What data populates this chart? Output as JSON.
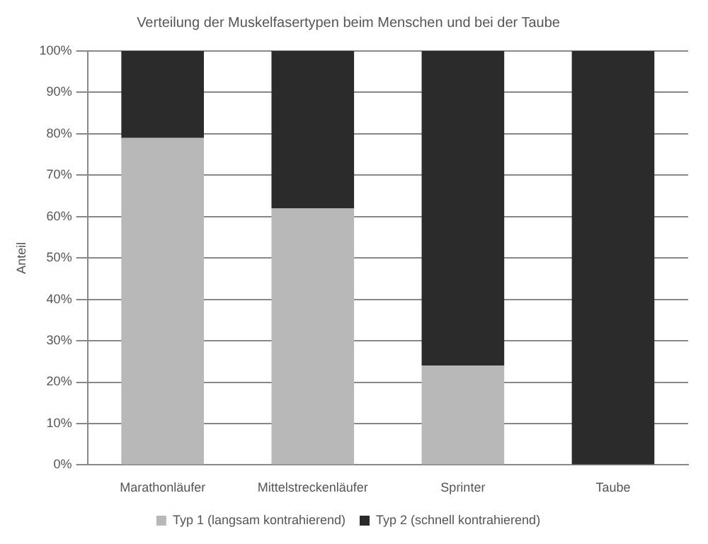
{
  "chart_data": {
    "type": "bar",
    "title": "Verteilung der Muskelfasertypen beim Menschen und bei der Taube",
    "ylabel": "Anteil",
    "stacked": true,
    "categories": [
      "Marathonläufer",
      "Mittelstreckenläufer",
      "Sprinter",
      "Taube"
    ],
    "series": [
      {
        "name": "Typ 1 (langsam kontrahierend)",
        "color": "#b8b8b8",
        "values": [
          79,
          62,
          24,
          0
        ]
      },
      {
        "name": "Typ 2 (schnell kontrahierend)",
        "color": "#2b2b2b",
        "values": [
          21,
          38,
          76,
          100
        ]
      }
    ],
    "ylim": [
      0,
      100
    ],
    "yticks": [
      {
        "value": 0,
        "label": "0%"
      },
      {
        "value": 10,
        "label": "10%"
      },
      {
        "value": 20,
        "label": "20%"
      },
      {
        "value": 30,
        "label": "30%"
      },
      {
        "value": 40,
        "label": "40%"
      },
      {
        "value": 50,
        "label": "50%"
      },
      {
        "value": 60,
        "label": "60%"
      },
      {
        "value": 70,
        "label": "70%"
      },
      {
        "value": 80,
        "label": "80%"
      },
      {
        "value": 90,
        "label": "90%"
      },
      {
        "value": 100,
        "label": "100%"
      }
    ],
    "grid": "y",
    "legend": "bottom"
  }
}
